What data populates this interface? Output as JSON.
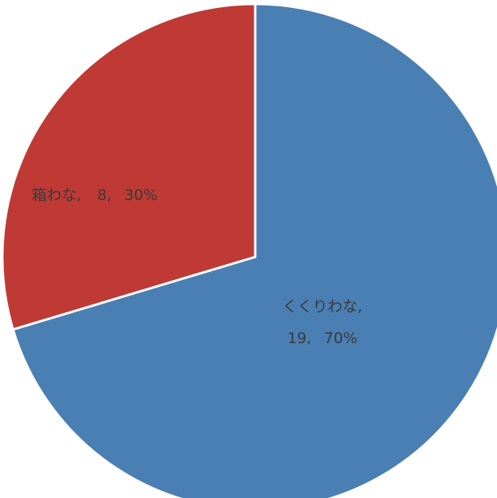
{
  "chart_data": {
    "type": "pie",
    "categories": [
      "くくりわな",
      "箱わな"
    ],
    "values": [
      19,
      8
    ],
    "percents": [
      "70%",
      "30%"
    ],
    "colors": [
      "#4a7fb3",
      "#bf3a35"
    ],
    "labels": [
      {
        "name": "くくりわな,",
        "value": "19,",
        "percent": "70%"
      },
      {
        "name": "箱わな,",
        "value": "8,",
        "percent": "30%"
      }
    ],
    "start_angle": "12 o'clock",
    "direction": "clockwise",
    "legend": "none",
    "title": ""
  }
}
